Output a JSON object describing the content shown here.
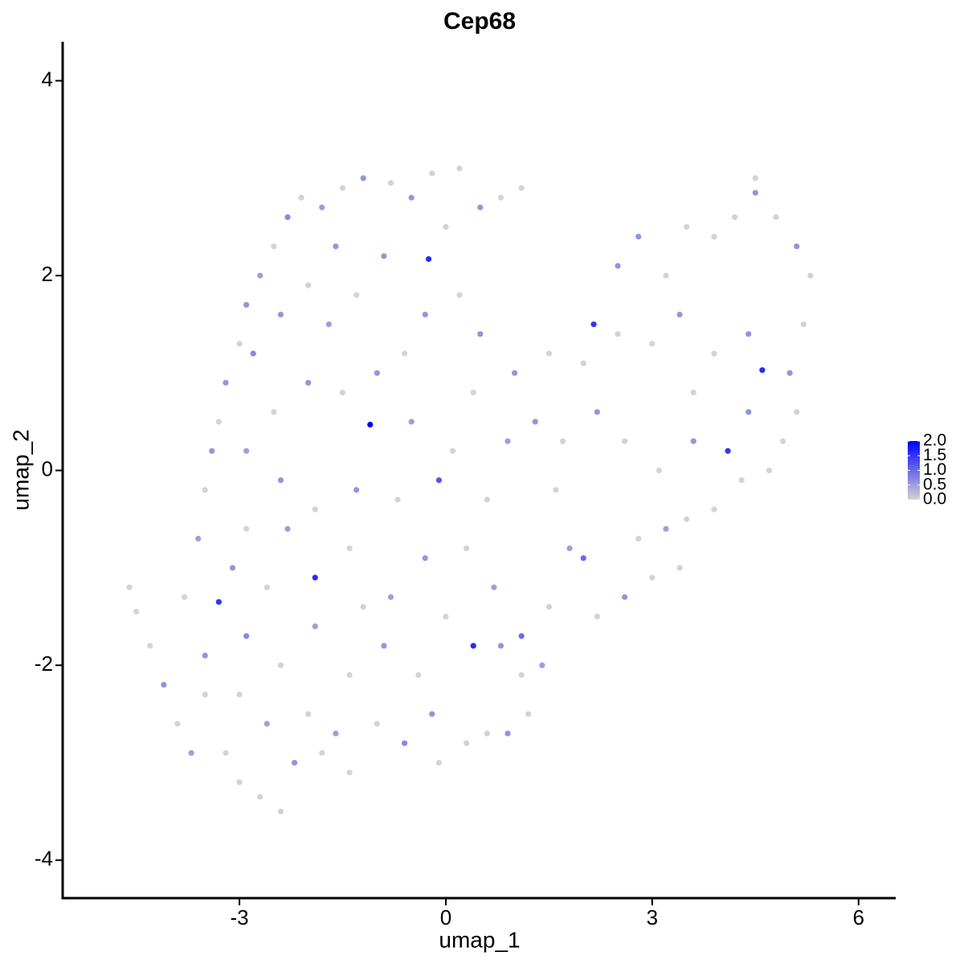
{
  "chart_data": {
    "type": "scatter",
    "title": "Cep68",
    "x_label": "umap_1",
    "y_label": "umap_2",
    "x": [
      -4.6,
      -4.5,
      -4.3,
      -4.1,
      -3.9,
      -3.7,
      -3.5,
      -3.3,
      -3.2,
      -3.0,
      -2.7,
      -2.4,
      -2.2,
      -2.0,
      -1.6,
      -1.4,
      -1.0,
      -0.6,
      -0.1,
      0.3,
      0.6,
      0.9,
      1.1,
      1.4,
      1.1,
      -3.8,
      -3.6,
      -3.5,
      -3.4,
      -3.3,
      -3.2,
      -3.0,
      -2.9,
      -2.7,
      -2.5,
      -2.3,
      -2.1,
      -1.8,
      -1.5,
      -1.2,
      -0.8,
      -0.5,
      -0.2,
      0.2,
      0.5,
      0.8,
      1.1,
      -2.8,
      -2.4,
      -2.0,
      -1.7,
      -1.3,
      -0.9,
      -0.25,
      0.2,
      0.5,
      -0.6,
      -1.0,
      -1.5,
      -2.0,
      -2.5,
      -2.9,
      -1.1,
      -0.5,
      0.1,
      -0.1,
      -0.7,
      -1.3,
      -1.9,
      -2.4,
      -2.9,
      -3.1,
      -2.6,
      -1.9,
      -1.4,
      -0.8,
      -0.3,
      0.3,
      0.7,
      -2.9,
      -2.4,
      -1.9,
      -1.4,
      -0.9,
      -0.4,
      0.4,
      0.0,
      -3.5,
      -2.6,
      -1.8,
      0.6,
      0.9,
      0.4,
      1.0,
      1.5,
      1.3,
      1.6,
      1.8,
      1.5,
      2.0,
      2.2,
      2.6,
      2.8,
      3.0,
      3.4,
      3.5,
      3.9,
      4.3,
      4.7,
      4.1,
      3.6,
      3.1,
      2.6,
      2.2,
      2.0,
      2.15,
      2.5,
      2.5,
      2.8,
      3.2,
      3.5,
      3.9,
      4.2,
      4.5,
      4.5,
      4.8,
      5.1,
      5.3,
      5.2,
      5.0,
      5.1,
      4.6,
      4.4,
      3.9,
      3.4,
      3.0,
      3.6,
      4.9,
      4.4,
      3.2,
      -0.3,
      0.0,
      -1.6,
      -2.3,
      -0.2,
      1.2,
      -3.0,
      -1.2,
      0.8,
      1.7
    ],
    "y": [
      -1.2,
      -1.45,
      -1.8,
      -2.2,
      -2.6,
      -2.9,
      -2.3,
      -1.35,
      -2.9,
      -3.2,
      -3.35,
      -3.5,
      -3.0,
      -2.5,
      -2.7,
      -3.1,
      -2.6,
      -2.8,
      -3.0,
      -2.8,
      -2.7,
      -2.7,
      -2.1,
      -2.0,
      -1.7,
      -1.3,
      -0.7,
      -0.2,
      0.2,
      0.5,
      0.9,
      1.3,
      1.7,
      2.0,
      2.3,
      2.6,
      2.8,
      2.7,
      2.9,
      3.0,
      2.95,
      2.8,
      3.05,
      3.1,
      2.7,
      2.8,
      2.9,
      1.2,
      1.6,
      1.9,
      1.5,
      1.8,
      2.2,
      2.17,
      1.8,
      1.4,
      1.2,
      1.0,
      0.8,
      0.9,
      0.6,
      0.2,
      0.47,
      0.5,
      0.2,
      -0.1,
      -0.3,
      -0.2,
      -0.4,
      -0.1,
      -0.6,
      -1.0,
      -1.2,
      -1.1,
      -0.8,
      -1.3,
      -0.9,
      -0.8,
      -1.2,
      -1.7,
      -2.0,
      -1.6,
      -2.1,
      -1.8,
      -2.1,
      -1.8,
      -1.5,
      -1.9,
      -2.6,
      -2.9,
      -0.3,
      0.3,
      0.8,
      1.0,
      1.2,
      0.5,
      -0.2,
      -0.8,
      -1.4,
      -0.9,
      -1.5,
      -1.3,
      -0.7,
      -1.1,
      -1.0,
      -0.5,
      -0.4,
      -0.1,
      0.0,
      0.2,
      0.3,
      0.0,
      0.3,
      0.6,
      1.1,
      1.5,
      1.4,
      2.1,
      2.4,
      2.0,
      2.5,
      2.4,
      2.6,
      3.0,
      2.85,
      2.6,
      2.3,
      2.0,
      1.5,
      1.0,
      0.6,
      1.03,
      1.4,
      1.2,
      1.6,
      1.3,
      0.8,
      0.3,
      0.6,
      -0.6,
      1.6,
      2.5,
      2.3,
      -0.6,
      -2.5,
      -2.5,
      -2.3,
      -1.4,
      -1.8,
      0.3
    ],
    "values": [
      0,
      0,
      0,
      0.6,
      0,
      0.5,
      0,
      1.5,
      0,
      0,
      0,
      0,
      0.6,
      0,
      0.5,
      0,
      0,
      0.7,
      0,
      0,
      0,
      0.6,
      0,
      0.5,
      1.0,
      0,
      0.5,
      0,
      0.6,
      0,
      0.6,
      0,
      0.6,
      0.5,
      0,
      0.7,
      0,
      0.5,
      0,
      0.6,
      0,
      0.6,
      0,
      0,
      0.6,
      0,
      0,
      0.7,
      0.6,
      0,
      0.5,
      0,
      0.6,
      1.6,
      0,
      0.6,
      0,
      0.6,
      0,
      0.6,
      0,
      0.5,
      2.0,
      0.5,
      0,
      1.2,
      0,
      0.6,
      0,
      0.6,
      0,
      0.6,
      0,
      1.6,
      0,
      0.5,
      0.6,
      0,
      0.5,
      0.7,
      0,
      0.5,
      0,
      0.6,
      0,
      1.6,
      0,
      0.6,
      0.5,
      0,
      0,
      0.5,
      0,
      0.6,
      0,
      0.6,
      0,
      0.5,
      0,
      1.0,
      0,
      0.6,
      0,
      0,
      0,
      0,
      0,
      0,
      0,
      1.5,
      0.6,
      0,
      0,
      0.6,
      0,
      1.5,
      0,
      0.6,
      0.6,
      0,
      0,
      0,
      0,
      0,
      0.6,
      0,
      0.6,
      0,
      0,
      0.6,
      0,
      1.6,
      0.6,
      0,
      0.6,
      0,
      0,
      0,
      0.6,
      0.5,
      0.6,
      0,
      0.6,
      0.5,
      0.6,
      0,
      0,
      0,
      0.6,
      0
    ],
    "color_low": "#d3d3d3",
    "color_high": "#0000ff",
    "colorbar": {
      "lim": [
        0,
        2
      ],
      "ticks": [
        {
          "value": 0,
          "label": "0.0"
        },
        {
          "value": 0.5,
          "label": "0.5"
        },
        {
          "value": 1,
          "label": "1.0"
        },
        {
          "value": 1.5,
          "label": "1.5"
        },
        {
          "value": 2,
          "label": "2.0"
        }
      ]
    },
    "xlim": [
      -5.57,
      6.54
    ],
    "xticks": [
      -3,
      0,
      3,
      6
    ],
    "ylim": [
      -4.39,
      4.4
    ],
    "yticks": [
      -4,
      -2,
      0,
      2,
      4
    ],
    "grid": false
  }
}
